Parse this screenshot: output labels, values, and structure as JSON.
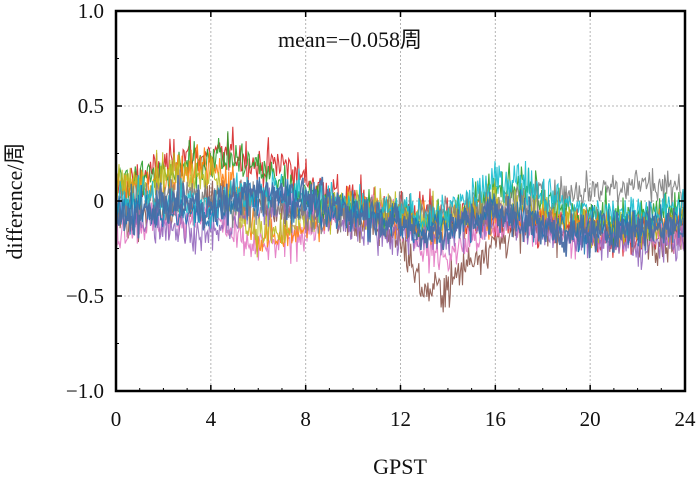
{
  "chart_data": {
    "type": "line",
    "title": "",
    "xlabel": "GPST",
    "ylabel": "difference/周",
    "annotation": "mean=−0.058周",
    "xlim": [
      0,
      24
    ],
    "ylim": [
      -1.0,
      1.0
    ],
    "x_ticks": [
      0,
      4,
      8,
      12,
      16,
      20,
      24
    ],
    "y_ticks": [
      -1.0,
      -0.5,
      0,
      0.5,
      1.0
    ],
    "x_tick_labels": [
      "0",
      "4",
      "8",
      "12",
      "16",
      "20",
      "24"
    ],
    "y_tick_labels": [
      "−1.0",
      "−0.5",
      "0",
      "0.5",
      "1.0"
    ],
    "grid": true,
    "legend": "none",
    "series": [
      {
        "color": "#d62728",
        "values": [
          0.05,
          0.12,
          0.18,
          0.25,
          0.22,
          0.26,
          0.18,
          0.2,
          0.12,
          0.05,
          0.0,
          -0.02,
          -0.06,
          -0.05,
          -0.08,
          -0.1,
          -0.12,
          -0.14,
          -0.16,
          -0.1,
          -0.18,
          -0.2,
          -0.18,
          -0.16,
          -0.12
        ]
      },
      {
        "color": "#8c564b",
        "values": [
          -0.1,
          -0.08,
          -0.05,
          -0.02,
          0.0,
          0.02,
          0.0,
          -0.02,
          -0.04,
          -0.08,
          -0.1,
          -0.14,
          -0.2,
          -0.48,
          -0.45,
          -0.3,
          -0.22,
          -0.15,
          -0.12,
          -0.14,
          -0.12,
          -0.15,
          -0.18,
          -0.2,
          -0.22
        ]
      },
      {
        "color": "#e377c2",
        "values": [
          -0.15,
          -0.12,
          -0.1,
          -0.08,
          -0.06,
          -0.2,
          -0.25,
          -0.22,
          -0.15,
          -0.1,
          -0.05,
          -0.04,
          -0.08,
          -0.25,
          -0.3,
          -0.2,
          -0.15,
          -0.1,
          -0.14,
          -0.18,
          -0.2,
          -0.18,
          -0.16,
          -0.15,
          -0.2
        ]
      },
      {
        "color": "#2ca02c",
        "values": [
          0.1,
          0.12,
          0.14,
          0.18,
          0.24,
          0.22,
          0.18,
          0.1,
          0.04,
          0.0,
          -0.04,
          -0.06,
          -0.08,
          -0.12,
          -0.1,
          -0.05,
          0.05,
          0.1,
          0.0,
          -0.05,
          -0.08,
          -0.1,
          -0.08,
          -0.06,
          -0.04
        ]
      },
      {
        "color": "#ff7f0e",
        "values": [
          0.05,
          0.08,
          0.1,
          0.15,
          0.18,
          0.1,
          -0.18,
          -0.2,
          -0.12,
          -0.06,
          -0.04,
          -0.06,
          -0.1,
          -0.15,
          -0.12,
          -0.08,
          -0.05,
          -0.06,
          -0.08,
          -0.1,
          -0.12,
          -0.14,
          -0.12,
          -0.1,
          -0.08
        ]
      },
      {
        "color": "#bcbd22",
        "values": [
          0.08,
          0.1,
          0.15,
          0.16,
          0.14,
          -0.05,
          -0.15,
          -0.18,
          -0.1,
          -0.05,
          -0.02,
          -0.04,
          -0.06,
          -0.1,
          -0.08,
          -0.04,
          0.0,
          -0.02,
          -0.06,
          -0.1,
          -0.12,
          -0.14,
          -0.16,
          -0.14,
          -0.12
        ]
      },
      {
        "color": "#9467bd",
        "values": [
          -0.05,
          -0.08,
          -0.12,
          -0.15,
          -0.18,
          -0.1,
          -0.02,
          0.0,
          -0.05,
          -0.1,
          -0.12,
          -0.15,
          -0.18,
          -0.2,
          -0.18,
          -0.12,
          -0.08,
          -0.1,
          -0.14,
          -0.18,
          -0.2,
          -0.22,
          -0.25,
          -0.22,
          -0.2
        ]
      },
      {
        "color": "#7f7f7f",
        "values": [
          -0.02,
          0.0,
          0.02,
          0.04,
          0.02,
          0.0,
          -0.02,
          -0.04,
          -0.06,
          -0.08,
          -0.06,
          -0.04,
          -0.06,
          -0.08,
          -0.06,
          -0.04,
          -0.02,
          0.0,
          0.02,
          0.04,
          0.06,
          0.08,
          0.1,
          0.08,
          0.06
        ]
      },
      {
        "color": "#17becf",
        "values": [
          0.0,
          0.02,
          0.0,
          -0.02,
          0.0,
          0.05,
          0.06,
          0.05,
          0.03,
          0.0,
          -0.04,
          -0.06,
          -0.06,
          -0.08,
          -0.06,
          0.02,
          0.1,
          0.12,
          0.05,
          -0.02,
          -0.06,
          -0.08,
          -0.06,
          -0.06,
          -0.04
        ]
      },
      {
        "color": "#1f77b4",
        "values": [
          -0.05,
          -0.04,
          -0.06,
          -0.08,
          -0.06,
          0.0,
          0.04,
          0.02,
          -0.02,
          -0.04,
          -0.06,
          -0.1,
          -0.12,
          -0.14,
          -0.12,
          -0.1,
          -0.05,
          -0.08,
          -0.12,
          -0.16,
          -0.15,
          -0.14,
          -0.12,
          -0.12,
          -0.1
        ]
      },
      {
        "color": "#4a6fa5",
        "values": [
          -0.12,
          -0.08,
          -0.02,
          0.0,
          -0.04,
          0.02,
          0.05,
          0.04,
          0.02,
          -0.02,
          -0.05,
          -0.08,
          -0.12,
          -0.18,
          -0.15,
          -0.1,
          -0.06,
          -0.1,
          -0.14,
          -0.18,
          -0.18,
          -0.16,
          -0.14,
          -0.14,
          -0.12
        ]
      }
    ]
  }
}
